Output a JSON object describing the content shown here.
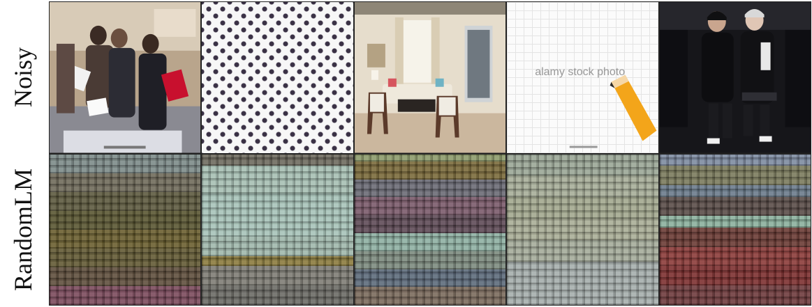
{
  "rows": [
    {
      "label": "Noisy"
    },
    {
      "label": "RandomLM"
    }
  ],
  "noisy_images": [
    {
      "icon": "people-line-photo"
    },
    {
      "icon": "star-pattern-photo"
    },
    {
      "icon": "living-room-photo"
    },
    {
      "icon": "pencil-photo",
      "watermark": "alamy stock photo"
    },
    {
      "icon": "two-men-photo"
    }
  ],
  "randomlm_images": [
    {
      "icon": "corrupted-texture"
    },
    {
      "icon": "corrupted-texture"
    },
    {
      "icon": "corrupted-texture"
    },
    {
      "icon": "corrupted-texture"
    },
    {
      "icon": "corrupted-texture"
    }
  ]
}
